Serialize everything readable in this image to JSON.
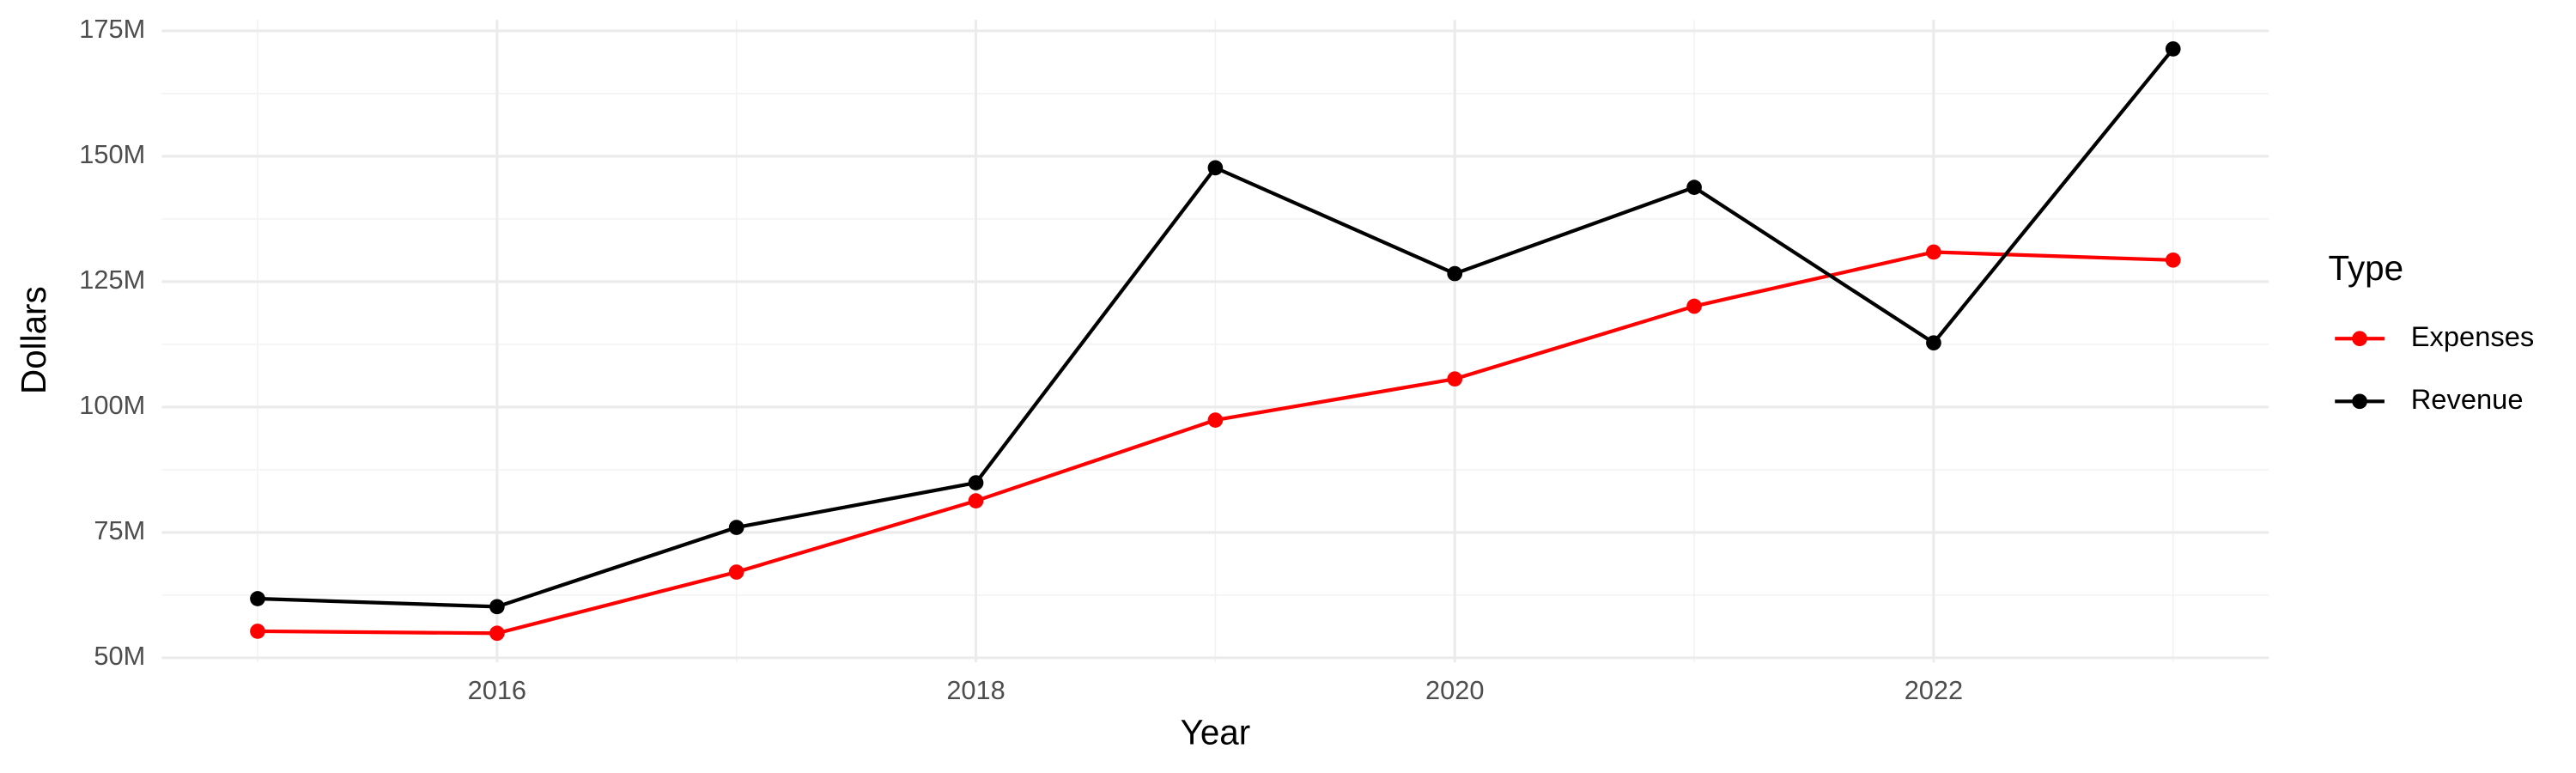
{
  "chart_data": {
    "type": "line",
    "x_label": "Year",
    "y_label": "Dollars",
    "legend_title": "Type",
    "legend_position": "right",
    "grid": true,
    "x": [
      2015,
      2016,
      2017,
      2018,
      2019,
      2020,
      2021,
      2022,
      2023
    ],
    "series": [
      {
        "name": "Expenses",
        "color": "#ff0000",
        "values": [
          55300000,
          54900000,
          67100000,
          81300000,
          97400000,
          105600000,
          120100000,
          130900000,
          129300000
        ]
      },
      {
        "name": "Revenue",
        "color": "#000000",
        "values": [
          61800000,
          60200000,
          76000000,
          84900000,
          147700000,
          126600000,
          143800000,
          112800000,
          171400000
        ]
      }
    ],
    "xlim": [
      2014.6,
      2023.4
    ],
    "xticks": [
      2016,
      2018,
      2020,
      2022
    ],
    "ylim": [
      49100000,
      177200000
    ],
    "yticks": [
      {
        "value": 50000000,
        "label": "50M"
      },
      {
        "value": 75000000,
        "label": "75M"
      },
      {
        "value": 100000000,
        "label": "100M"
      },
      {
        "value": 125000000,
        "label": "125M"
      },
      {
        "value": 150000000,
        "label": "150M"
      },
      {
        "value": 175000000,
        "label": "175M"
      }
    ]
  }
}
